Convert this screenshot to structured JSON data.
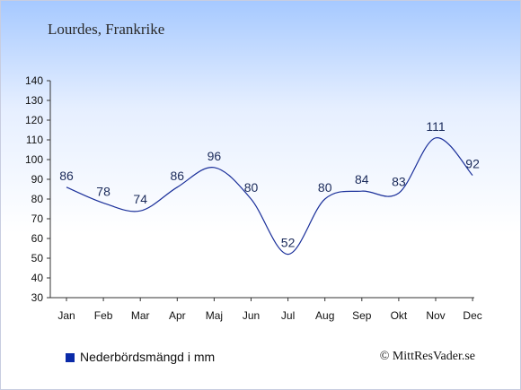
{
  "chart_data": {
    "type": "line",
    "title": "Lourdes, Frankrike",
    "categories": [
      "Jan",
      "Feb",
      "Mar",
      "Apr",
      "Maj",
      "Jun",
      "Jul",
      "Aug",
      "Sep",
      "Okt",
      "Nov",
      "Dec"
    ],
    "series": [
      {
        "name": "Nederbördsmängd i mm",
        "values": [
          86,
          78,
          74,
          86,
          96,
          80,
          52,
          80,
          84,
          83,
          111,
          92
        ],
        "color": "#1a2f9a"
      }
    ],
    "ylim": [
      30,
      140
    ],
    "yticks": [
      140,
      130,
      120,
      110,
      100,
      90,
      80,
      70,
      60,
      50,
      40,
      30
    ],
    "grid": false,
    "legend_position": "bottom-left"
  },
  "credit": "© MittResVader.se"
}
